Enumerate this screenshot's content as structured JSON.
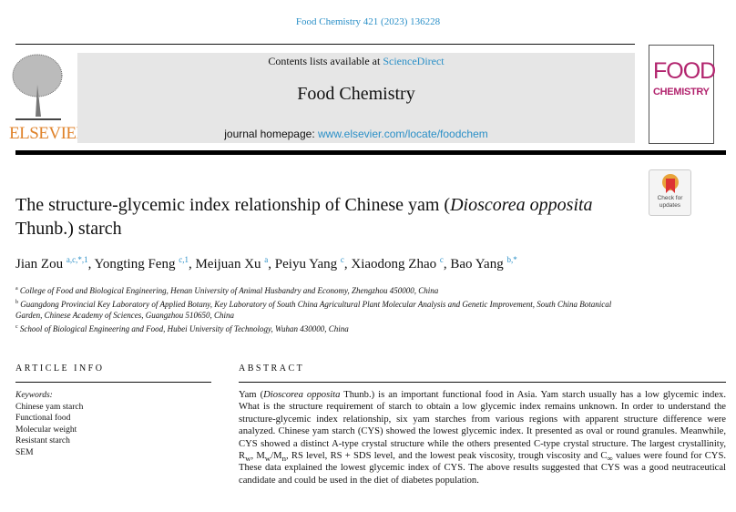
{
  "header": {
    "citation": "Food Chemistry 421 (2023) 136228",
    "contents_prefix": "Contents lists available at ",
    "contents_link": "ScienceDirect",
    "journal": "Food Chemistry",
    "homepage_prefix": "journal homepage: ",
    "homepage_link": "www.elsevier.com/locate/foodchem",
    "publisher": "ELSEVIER",
    "cover_line1": "FOOD",
    "cover_line2": "CHEMISTRY",
    "badge": "Check for updates"
  },
  "article": {
    "title_a": "The structure-glycemic index relationship of Chinese yam (",
    "title_italic": "Dioscorea opposita",
    "title_b": " Thunb.) starch",
    "authors": [
      {
        "name": "Jian Zou",
        "sup": "a,c,*,1"
      },
      {
        "name": "Yongting Feng",
        "sup": "c,1"
      },
      {
        "name": "Meijuan Xu",
        "sup": "a"
      },
      {
        "name": "Peiyu Yang",
        "sup": "c"
      },
      {
        "name": "Xiaodong Zhao",
        "sup": "c"
      },
      {
        "name": "Bao Yang",
        "sup": "b,*"
      }
    ],
    "affiliations": [
      {
        "sup": "a",
        "text": "College of Food and Biological Engineering, Henan University of Animal Husbandry and Economy, Zhengzhou 450000, China"
      },
      {
        "sup": "b",
        "text": "Guangdong Provincial Key Laboratory of Applied Botany, Key Laboratory of South China Agricultural Plant Molecular Analysis and Genetic Improvement, South China Botanical Garden, Chinese Academy of Sciences, Guangzhou 510650, China"
      },
      {
        "sup": "c",
        "text": "School of Biological Engineering and Food, Hubei University of Technology, Wuhan 430000, China"
      }
    ]
  },
  "info": {
    "heading": "ARTICLE INFO",
    "keywords_label": "Keywords:",
    "keywords": [
      "Chinese yam starch",
      "Functional food",
      "Molecular weight",
      "Resistant starch",
      "SEM"
    ]
  },
  "abstract": {
    "heading": "ABSTRACT",
    "p1": "Yam (",
    "p1i": "Dioscorea opposita",
    "p2": " Thunb.) is an important functional food in Asia. Yam starch usually has a low glycemic index. What is the structure requirement of starch to obtain a low glycemic index remains unknown. In order to understand the structure-glycemic index relationship, six yam starches from various regions with apparent structure difference were analyzed. Chinese yam starch (CYS) showed the lowest glycemic index. It presented as oval or round granules. Meanwhile, CYS showed a distinct A-type crystal structure while the others presented C-type crystal structure. The largest crystallinity, R",
    "s1": "w",
    "p3": ", M",
    "s2": "w",
    "p4": "/M",
    "s3": "n",
    "p5": ", RS level, RS + SDS level, and the lowest peak viscosity, trough viscosity and C",
    "s4": "∞",
    "p6": " values were found for CYS. These data explained the lowest glycemic index of CYS. The above results suggested that CYS was a good neutraceutical candidate and could be used in the diet of diabetes population."
  }
}
